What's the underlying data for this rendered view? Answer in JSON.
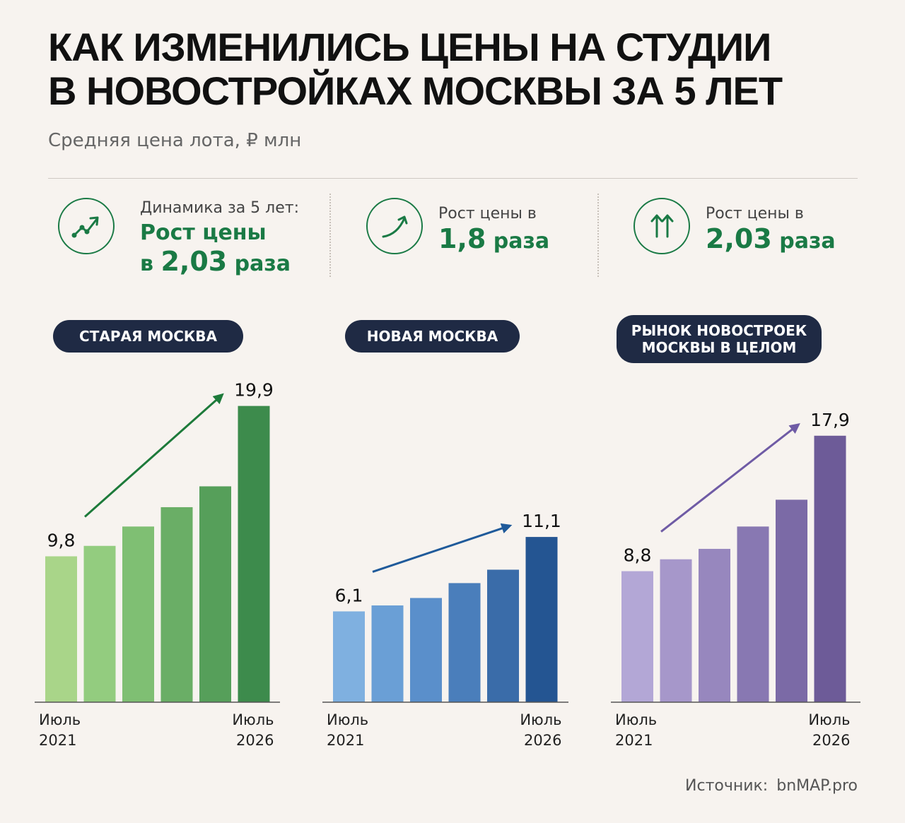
{
  "header": {
    "title_line1": "КАК ИЗМЕНИЛИСЬ ЦЕНЫ НА СТУДИИ",
    "title_line2": "В НОВОСТРОЙКАХ МОСКВЫ ЗА 5 ЛЕТ",
    "subtitle": "Средняя цена лота, ₽ млн"
  },
  "stats": [
    {
      "icon": "trend-up-icon",
      "label": "Динамика за 5 лет:",
      "line1": "Рост цены",
      "prefix": "в",
      "number": "2,03",
      "suffix": "раза"
    },
    {
      "icon": "curve-arrow-icon",
      "label": "Рост цены в",
      "number": "1,8",
      "suffix": "раза"
    },
    {
      "icon": "double-up-arrow-icon",
      "label": "Рост цены в",
      "number": "2,03",
      "suffix": "раза"
    }
  ],
  "colors": {
    "stat_accent": "#1a7a45",
    "pill_bg": "#1f2a44",
    "green_series": [
      "#a9d589",
      "#93cc7f",
      "#7fbf73",
      "#6aae66",
      "#569f5a",
      "#3d8b4c"
    ],
    "blue_series": [
      "#7fb0e0",
      "#6a9fd6",
      "#5a8fcb",
      "#4a7ebb",
      "#3a6ca9",
      "#245592"
    ],
    "purple_series": [
      "#b3a7d6",
      "#a697ca",
      "#9787be",
      "#8878b2",
      "#7b6aa6",
      "#6d5b98"
    ],
    "green_arrow": "#1d7a3a",
    "blue_arrow": "#1f5a9a",
    "purple_arrow": "#6f5ba5"
  },
  "chart_data": [
    {
      "type": "bar",
      "title": "СТАРАЯ МОСКВА",
      "values": [
        9.8,
        10.5,
        11.8,
        13.1,
        14.5,
        19.9
      ],
      "value_labels": [
        "9,8",
        "",
        "",
        "",
        "",
        "19,9"
      ],
      "x_first_label": [
        "Июль",
        "2021"
      ],
      "x_last_label": [
        "Июль",
        "2026"
      ],
      "ylim": [
        0,
        20.5
      ],
      "grid": false
    },
    {
      "type": "bar",
      "title": "НОВАЯ МОСКВА",
      "values": [
        6.1,
        6.5,
        7.0,
        8.0,
        8.9,
        11.1
      ],
      "value_labels": [
        "6,1",
        "",
        "",
        "",
        "",
        "11,1"
      ],
      "x_first_label": [
        "Июль",
        "2021"
      ],
      "x_last_label": [
        "Июль",
        "2026"
      ],
      "ylim": [
        0,
        20.5
      ],
      "grid": false
    },
    {
      "type": "bar",
      "title": "РЫНОК НОВОСТРОЕК МОСКВЫ В ЦЕЛОМ",
      "title_lines": [
        "РЫНОК НОВОСТРОЕК",
        "МОСКВЫ В ЦЕЛОМ"
      ],
      "values": [
        8.8,
        9.6,
        10.3,
        11.8,
        13.6,
        17.9
      ],
      "value_labels": [
        "8,8",
        "",
        "",
        "",
        "",
        "17,9"
      ],
      "x_first_label": [
        "Июль",
        "2021"
      ],
      "x_last_label": [
        "Июль",
        "2026"
      ],
      "ylim": [
        0,
        20.5
      ],
      "grid": false
    }
  ],
  "source": {
    "label": "Источник:",
    "value": "bnMAP.pro"
  }
}
